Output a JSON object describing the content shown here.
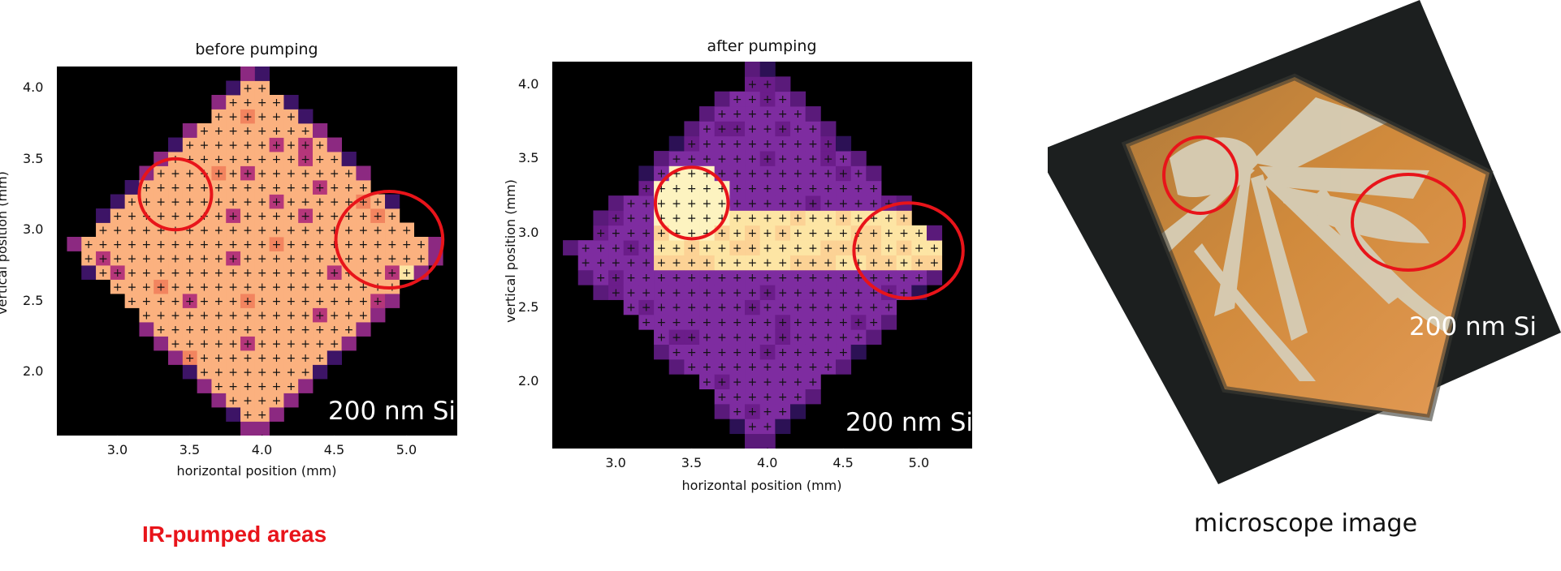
{
  "chart_data": [
    {
      "type": "heatmap",
      "title": "before pumping",
      "xlabel": "horizontal position (mm)",
      "ylabel": "vertical position (mm)",
      "xlim": [
        2.58,
        5.35
      ],
      "ylim": [
        1.55,
        4.15
      ],
      "xticks": [
        "3.0",
        "3.5",
        "4.0",
        "4.5",
        "5.0"
      ],
      "yticks": [
        "2.0",
        "2.5",
        "3.0",
        "3.5",
        "4.0"
      ],
      "colormap": "magma",
      "annotation": "200 nm Si",
      "marker": "+",
      "pumped_areas": [
        {
          "x": 3.4,
          "y": 3.25,
          "r": 0.25
        },
        {
          "x": 4.88,
          "y": 2.93,
          "rx": 0.37,
          "ry": 0.34
        }
      ]
    },
    {
      "type": "heatmap",
      "title": "after pumping",
      "xlabel": "horizontal position (mm)",
      "ylabel": "vertical position (mm)",
      "xlim": [
        2.58,
        5.35
      ],
      "ylim": [
        1.55,
        4.15
      ],
      "xticks": [
        "3.0",
        "3.5",
        "4.0",
        "4.5",
        "5.0"
      ],
      "yticks": [
        "2.0",
        "2.5",
        "3.0",
        "3.5",
        "4.0"
      ],
      "colormap": "magma",
      "annotation": "200 nm Si",
      "marker": "+",
      "pumped_areas": [
        {
          "x": 3.5,
          "y": 3.2,
          "r": 0.24
        },
        {
          "x": 4.93,
          "y": 2.88,
          "rx": 0.36,
          "ry": 0.32
        }
      ]
    }
  ],
  "photo": {
    "annotation": "200 nm Si",
    "caption": "microscope image"
  },
  "legend_text": "IR-pumped areas",
  "colors": {
    "circle": "#e8141a",
    "background": "#000000"
  }
}
